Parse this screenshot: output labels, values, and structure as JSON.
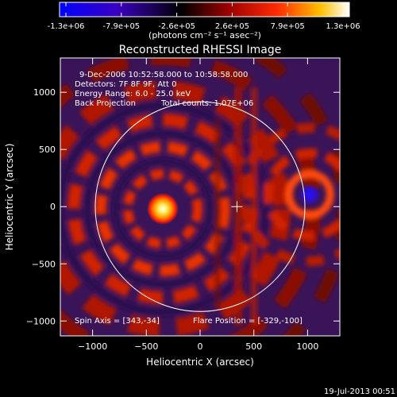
{
  "colorbar": {
    "tick_labels": [
      "-1.3e+06",
      "-7.9e+05",
      "-2.6e+05",
      "2.6e+05",
      "7.9e+05",
      "1.3e+06"
    ],
    "units": "(photons cm⁻² s⁻¹ asec⁻²)"
  },
  "title": "Reconstructed RHESSI Image",
  "info": {
    "time_range": "9-Dec-2006 10:52:58.000 to 10:58:58.000",
    "detectors": "Detectors: 7F 8F 9F, Att 0",
    "energy": "Energy Range: 6.0 - 25.0 keV",
    "method": "Back Projection",
    "counts": "Total counts: 1.07E+06"
  },
  "footer": {
    "spin_axis": "Spin Axis = [343,-34]",
    "flare_position": "Flare Position = [-329,-100]"
  },
  "axes": {
    "xlabel": "Heliocentric X (arcsec)",
    "ylabel": "Heliocentric Y (arcsec)",
    "xticks": [
      -1000,
      -500,
      0,
      500,
      1000
    ],
    "yticks": [
      -1000,
      -500,
      0,
      500,
      1000
    ],
    "xlim": [
      -1300,
      1300
    ],
    "ylim": [
      -1130,
      1300
    ]
  },
  "solar_disk": {
    "center": [
      0,
      0
    ],
    "radius_arcsec": 975
  },
  "cross_marker": {
    "x": 343,
    "y": 0
  },
  "timestamp": "19-Jul-2013 00:51"
}
